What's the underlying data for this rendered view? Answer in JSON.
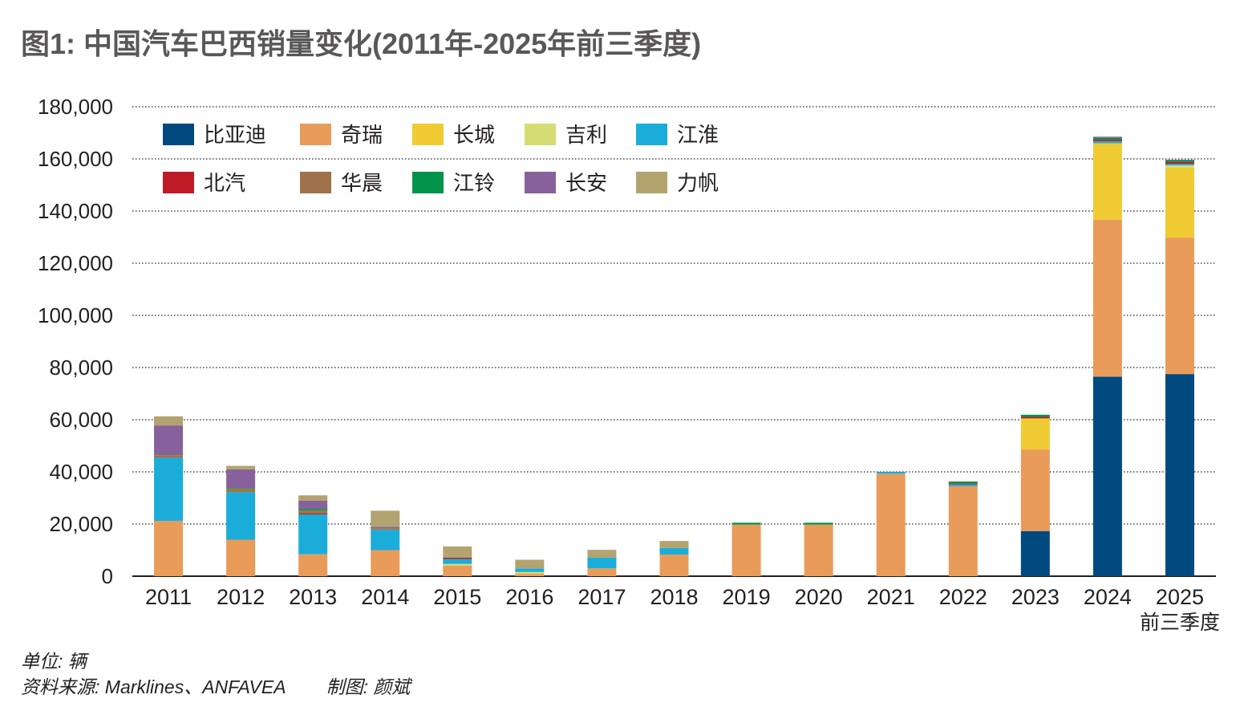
{
  "title": "图1: 中国汽车巴西销量变化(2011年-2025年前三季度)",
  "footer": {
    "unit": "单位: 辆",
    "source": "资料来源: Marklines、ANFAVEA",
    "credit": "制图: 颜斌"
  },
  "chart_data": {
    "type": "bar",
    "stacked": true,
    "title": "图1: 中国汽车巴西销量变化(2011年-2025年前三季度)",
    "xlabel": "",
    "ylabel": "单位: 辆",
    "ylim": [
      0,
      180000
    ],
    "yticks": [
      0,
      20000,
      40000,
      60000,
      80000,
      100000,
      120000,
      140000,
      160000,
      180000
    ],
    "ytick_labels": [
      "0",
      "20,000",
      "40,000",
      "60,000",
      "80,000",
      "100,000",
      "120,000",
      "140,000",
      "160,000",
      "180,000"
    ],
    "grid": true,
    "legend_position": "top-left",
    "categories": [
      "2011",
      "2012",
      "2013",
      "2014",
      "2015",
      "2016",
      "2017",
      "2018",
      "2019",
      "2020",
      "2021",
      "2022",
      "2023",
      "2024",
      "2025"
    ],
    "category_sublabels": [
      "",
      "",
      "",
      "",
      "",
      "",
      "",
      "",
      "",
      "",
      "",
      "",
      "",
      "",
      "前三季度"
    ],
    "series": [
      {
        "name": "比亚迪",
        "color": "#004a7f",
        "values": [
          0,
          0,
          0,
          0,
          0,
          0,
          0,
          0,
          0,
          0,
          0,
          0,
          17300,
          76500,
          77500
        ]
      },
      {
        "name": "奇瑞",
        "color": "#e99b5a",
        "values": [
          21200,
          14000,
          8400,
          10000,
          4000,
          900,
          3000,
          8300,
          19800,
          19800,
          39300,
          34500,
          31300,
          60200,
          52300
        ]
      },
      {
        "name": "长城",
        "color": "#f0cb33",
        "values": [
          0,
          0,
          0,
          0,
          0,
          0,
          0,
          0,
          0,
          0,
          0,
          0,
          11900,
          29300,
          26900
        ]
      },
      {
        "name": "吉利",
        "color": "#d4dc73",
        "values": [
          0,
          0,
          0,
          0,
          700,
          700,
          0,
          0,
          0,
          0,
          0,
          0,
          0,
          0,
          800
        ]
      },
      {
        "name": "江淮",
        "color": "#1badda",
        "values": [
          24200,
          18200,
          15300,
          7800,
          1900,
          1400,
          4100,
          2500,
          0,
          0,
          700,
          700,
          0,
          800,
          600
        ]
      },
      {
        "name": "北汽",
        "color": "#be1b27",
        "values": [
          0,
          0,
          300,
          0,
          500,
          0,
          0,
          0,
          0,
          0,
          0,
          400,
          600,
          700,
          700
        ]
      },
      {
        "name": "华晨",
        "color": "#a0714a",
        "values": [
          1000,
          1300,
          1200,
          600,
          0,
          0,
          0,
          0,
          0,
          0,
          0,
          0,
          0,
          0,
          0
        ]
      },
      {
        "name": "江铃",
        "color": "#00934a",
        "values": [
          0,
          300,
          600,
          0,
          0,
          0,
          0,
          0,
          700,
          700,
          0,
          700,
          800,
          700,
          600
        ]
      },
      {
        "name": "长安",
        "color": "#87619c",
        "values": [
          11400,
          7200,
          3200,
          500,
          0,
          0,
          0,
          0,
          0,
          0,
          0,
          0,
          0,
          300,
          300
        ]
      },
      {
        "name": "力帆",
        "color": "#b2a36f",
        "values": [
          3500,
          1300,
          2000,
          6200,
          4300,
          3300,
          3000,
          2700,
          0,
          0,
          0,
          0,
          0,
          0,
          0
        ]
      }
    ],
    "legend_rows": [
      [
        "比亚迪",
        "奇瑞",
        "长城",
        "吉利",
        "江淮"
      ],
      [
        "北汽",
        "华晨",
        "江铃",
        "长安",
        "力帆"
      ]
    ]
  }
}
